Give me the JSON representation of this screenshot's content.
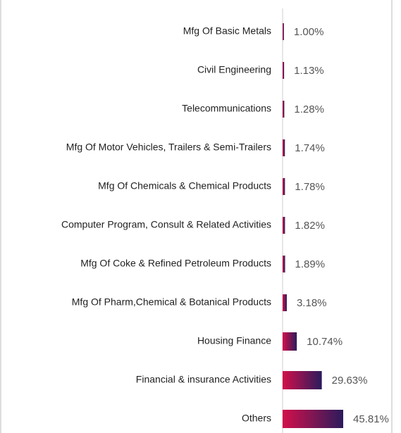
{
  "chart_data": {
    "type": "barh",
    "categories": [
      "Mfg Of Basic Metals",
      "Civil Engineering",
      "Telecommunications",
      "Mfg Of Motor Vehicles, Trailers & Semi-Trailers",
      "Mfg Of Chemicals & Chemical Products",
      "Computer Program, Consult & Related Activities",
      "Mfg Of Coke & Refined Petroleum Products",
      "Mfg Of Pharm,Chemical & Botanical Products",
      "Housing Finance",
      "Financial & insurance Activities",
      "Others"
    ],
    "values": [
      1.0,
      1.13,
      1.28,
      1.74,
      1.78,
      1.82,
      1.89,
      3.18,
      10.74,
      29.63,
      45.81
    ],
    "value_labels": [
      "1.00%",
      "1.13%",
      "1.28%",
      "1.74%",
      "1.78%",
      "1.82%",
      "1.89%",
      "3.18%",
      "10.74%",
      "29.63%",
      "45.81%"
    ],
    "color": [
      "#d3104a",
      "#2b1b5c"
    ]
  }
}
